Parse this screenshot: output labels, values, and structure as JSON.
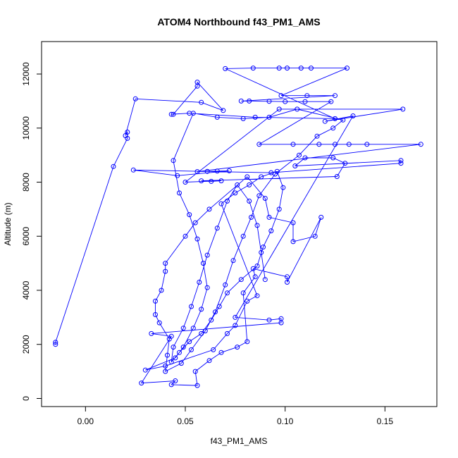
{
  "chart_data": {
    "type": "scatter",
    "title": "ATOM4 Northbound f43_PM1_AMS",
    "xlabel": "f43_PM1_AMS",
    "ylabel": "Altitude (m)",
    "xlim": [
      -0.022,
      0.176
    ],
    "ylim": [
      -300,
      13200
    ],
    "x_ticks": [
      0.0,
      0.05,
      0.1,
      0.15
    ],
    "x_tick_labels": [
      "0.00",
      "0.05",
      "0.10",
      "0.15"
    ],
    "y_ticks": [
      0,
      2000,
      4000,
      6000,
      8000,
      10000,
      12000
    ],
    "y_tick_labels": [
      "0",
      "2000",
      "4000",
      "6000",
      "8000",
      "10000",
      "12000"
    ],
    "grid": false,
    "legend": "none",
    "colors": {
      "series": "#0000ff"
    },
    "series": [
      {
        "style": "points-connected",
        "points": [
          [
            -0.015,
            2000
          ],
          [
            -0.015,
            2080
          ],
          [
            0.014,
            8580
          ],
          [
            0.021,
            9620
          ],
          [
            0.021,
            9850
          ],
          [
            0.02,
            9720
          ],
          [
            0.025,
            11080
          ],
          [
            0.058,
            10950
          ],
          [
            0.069,
            10650
          ],
          [
            0.056,
            11700
          ],
          [
            0.056,
            11550
          ],
          [
            0.044,
            10510
          ],
          [
            0.043,
            10510
          ],
          [
            0.052,
            10550
          ],
          [
            0.085,
            10400
          ],
          [
            0.125,
            10350
          ],
          [
            0.07,
            12200
          ],
          [
            0.084,
            12220
          ],
          [
            0.097,
            12220
          ],
          [
            0.101,
            12220
          ],
          [
            0.108,
            12220
          ],
          [
            0.113,
            12220
          ],
          [
            0.131,
            12220
          ],
          [
            0.098,
            11200
          ],
          [
            0.111,
            11200
          ],
          [
            0.125,
            11200
          ],
          [
            0.078,
            11000
          ],
          [
            0.082,
            11000
          ],
          [
            0.092,
            10990
          ],
          [
            0.1,
            10980
          ],
          [
            0.11,
            10980
          ],
          [
            0.123,
            10980
          ],
          [
            0.087,
            9400
          ],
          [
            0.104,
            9400
          ],
          [
            0.117,
            9400
          ],
          [
            0.125,
            9400
          ],
          [
            0.132,
            9400
          ],
          [
            0.141,
            9400
          ],
          [
            0.168,
            9400
          ],
          [
            0.056,
            8390
          ],
          [
            0.061,
            8400
          ],
          [
            0.066,
            8410
          ],
          [
            0.072,
            8420
          ],
          [
            0.046,
            8240
          ],
          [
            0.024,
            8450
          ],
          [
            0.093,
            8350
          ],
          [
            0.158,
            8700
          ],
          [
            0.158,
            8800
          ],
          [
            0.105,
            8600
          ],
          [
            0.11,
            8900
          ],
          [
            0.124,
            8900
          ],
          [
            0.13,
            8700
          ],
          [
            0.126,
            8210
          ],
          [
            0.058,
            8050
          ],
          [
            0.063,
            8030
          ],
          [
            0.068,
            8050
          ],
          [
            0.05,
            8000
          ],
          [
            0.097,
            10700
          ],
          [
            0.159,
            10700
          ],
          [
            0.12,
            10250
          ],
          [
            0.134,
            10450
          ],
          [
            0.075,
            3000
          ],
          [
            0.092,
            2900
          ],
          [
            0.098,
            2950
          ],
          [
            0.098,
            2800
          ],
          [
            0.033,
            2400
          ],
          [
            0.043,
            2300
          ],
          [
            0.028,
            570
          ],
          [
            0.045,
            650
          ],
          [
            0.043,
            510
          ],
          [
            0.056,
            480
          ],
          [
            0.055,
            1000
          ],
          [
            0.062,
            1400
          ],
          [
            0.068,
            1700
          ],
          [
            0.076,
            1900
          ],
          [
            0.081,
            2100
          ],
          [
            0.079,
            3900
          ],
          [
            0.085,
            4500
          ],
          [
            0.084,
            4800
          ],
          [
            0.101,
            4500
          ],
          [
            0.101,
            4300
          ],
          [
            0.118,
            6700
          ],
          [
            0.115,
            6000
          ],
          [
            0.104,
            5800
          ],
          [
            0.104,
            6500
          ],
          [
            0.092,
            6700
          ],
          [
            0.09,
            7400
          ],
          [
            0.081,
            8200
          ],
          [
            0.062,
            7000
          ],
          [
            0.055,
            6500
          ],
          [
            0.05,
            6000
          ],
          [
            0.04,
            5000
          ],
          [
            0.04,
            4700
          ],
          [
            0.038,
            4000
          ],
          [
            0.035,
            3600
          ],
          [
            0.035,
            3100
          ],
          [
            0.037,
            2800
          ],
          [
            0.042,
            2200
          ],
          [
            0.041,
            1600
          ],
          [
            0.04,
            1000
          ],
          [
            0.048,
            1300
          ],
          [
            0.053,
            1800
          ],
          [
            0.06,
            2500
          ],
          [
            0.065,
            3200
          ],
          [
            0.07,
            4200
          ],
          [
            0.074,
            5100
          ],
          [
            0.079,
            6000
          ],
          [
            0.083,
            6700
          ],
          [
            0.087,
            7500
          ],
          [
            0.095,
            8300
          ],
          [
            0.107,
            9000
          ],
          [
            0.116,
            9700
          ],
          [
            0.124,
            10000
          ],
          [
            0.129,
            10300
          ],
          [
            0.106,
            10700
          ],
          [
            0.092,
            10400
          ],
          [
            0.079,
            10350
          ],
          [
            0.066,
            10400
          ],
          [
            0.054,
            10550
          ],
          [
            0.044,
            8800
          ],
          [
            0.047,
            7600
          ],
          [
            0.052,
            6800
          ],
          [
            0.056,
            5900
          ],
          [
            0.059,
            5000
          ],
          [
            0.061,
            4100
          ],
          [
            0.058,
            3300
          ],
          [
            0.054,
            2600
          ],
          [
            0.049,
            1900
          ],
          [
            0.045,
            1500
          ],
          [
            0.03,
            1050
          ],
          [
            0.04,
            1200
          ],
          [
            0.064,
            1800
          ],
          [
            0.071,
            2400
          ],
          [
            0.075,
            2700
          ],
          [
            0.081,
            3600
          ],
          [
            0.086,
            3800
          ],
          [
            0.068,
            7200
          ],
          [
            0.075,
            7600
          ],
          [
            0.082,
            7900
          ],
          [
            0.088,
            8200
          ],
          [
            0.096,
            8400
          ],
          [
            0.099,
            7800
          ],
          [
            0.097,
            7000
          ],
          [
            0.093,
            6200
          ],
          [
            0.089,
            5600
          ],
          [
            0.086,
            4900
          ],
          [
            0.078,
            4400
          ],
          [
            0.071,
            3900
          ],
          [
            0.067,
            3400
          ],
          [
            0.063,
            2900
          ],
          [
            0.058,
            2400
          ],
          [
            0.052,
            2100
          ],
          [
            0.047,
            1700
          ],
          [
            0.043,
            1350
          ],
          [
            0.044,
            1900
          ],
          [
            0.049,
            2600
          ],
          [
            0.053,
            3400
          ],
          [
            0.057,
            4300
          ],
          [
            0.061,
            5300
          ],
          [
            0.066,
            6300
          ],
          [
            0.071,
            7300
          ],
          [
            0.076,
            7900
          ],
          [
            0.082,
            7300
          ],
          [
            0.086,
            6400
          ],
          [
            0.088,
            5400
          ],
          [
            0.09,
            4400
          ]
        ]
      }
    ]
  }
}
